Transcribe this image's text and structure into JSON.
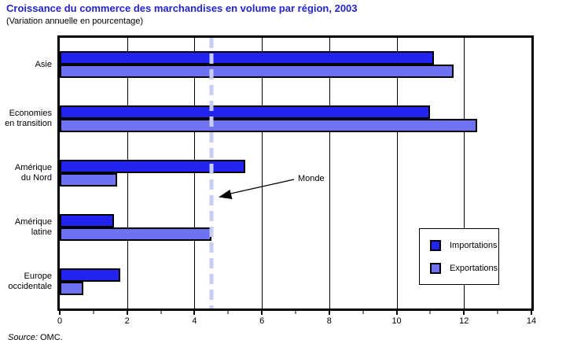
{
  "header": {
    "title": "Croissance du commerce des marchandises en volume par région, 2003",
    "subtitle": "(Variation annuelle en pourcentage)"
  },
  "chart_data": {
    "type": "bar",
    "orientation": "horizontal",
    "title": "Croissance du commerce des marchandises en volume par région, 2003",
    "subtitle": "(Variation annuelle en pourcentage)",
    "categories": [
      "Asie",
      "Economies\nen transition",
      "Amérique\ndu Nord",
      "Amérique\nlatine",
      "Europe\noccidentale"
    ],
    "series": [
      {
        "name": "Importations",
        "color": "#2123ee",
        "values": [
          11.1,
          11.0,
          5.5,
          1.6,
          1.8
        ]
      },
      {
        "name": "Exportations",
        "color": "#6e71f2",
        "values": [
          11.7,
          12.4,
          1.7,
          4.5,
          0.7
        ]
      }
    ],
    "xlim": [
      0,
      14
    ],
    "x_ticks": [
      0,
      2,
      4,
      6,
      8,
      10,
      12,
      14
    ],
    "grid": "vertical-major-lines",
    "legend_position": "inside-right",
    "reference_line": {
      "label": "Monde",
      "value": 4.5,
      "color": "#c9cdf4",
      "style": "dashed"
    }
  },
  "legend": {
    "items": [
      {
        "label": "Importations",
        "color": "#2123ee"
      },
      {
        "label": "Exportations",
        "color": "#6e71f2"
      }
    ]
  },
  "annotation": {
    "label": "Monde"
  },
  "source": {
    "prefix": "Source:",
    "text": " OMC."
  },
  "colors": {
    "title": "#2424cc",
    "importations": "#2123ee",
    "exportations": "#6e71f2",
    "reference_line": "#c9cdf4",
    "axis": "#000000"
  }
}
